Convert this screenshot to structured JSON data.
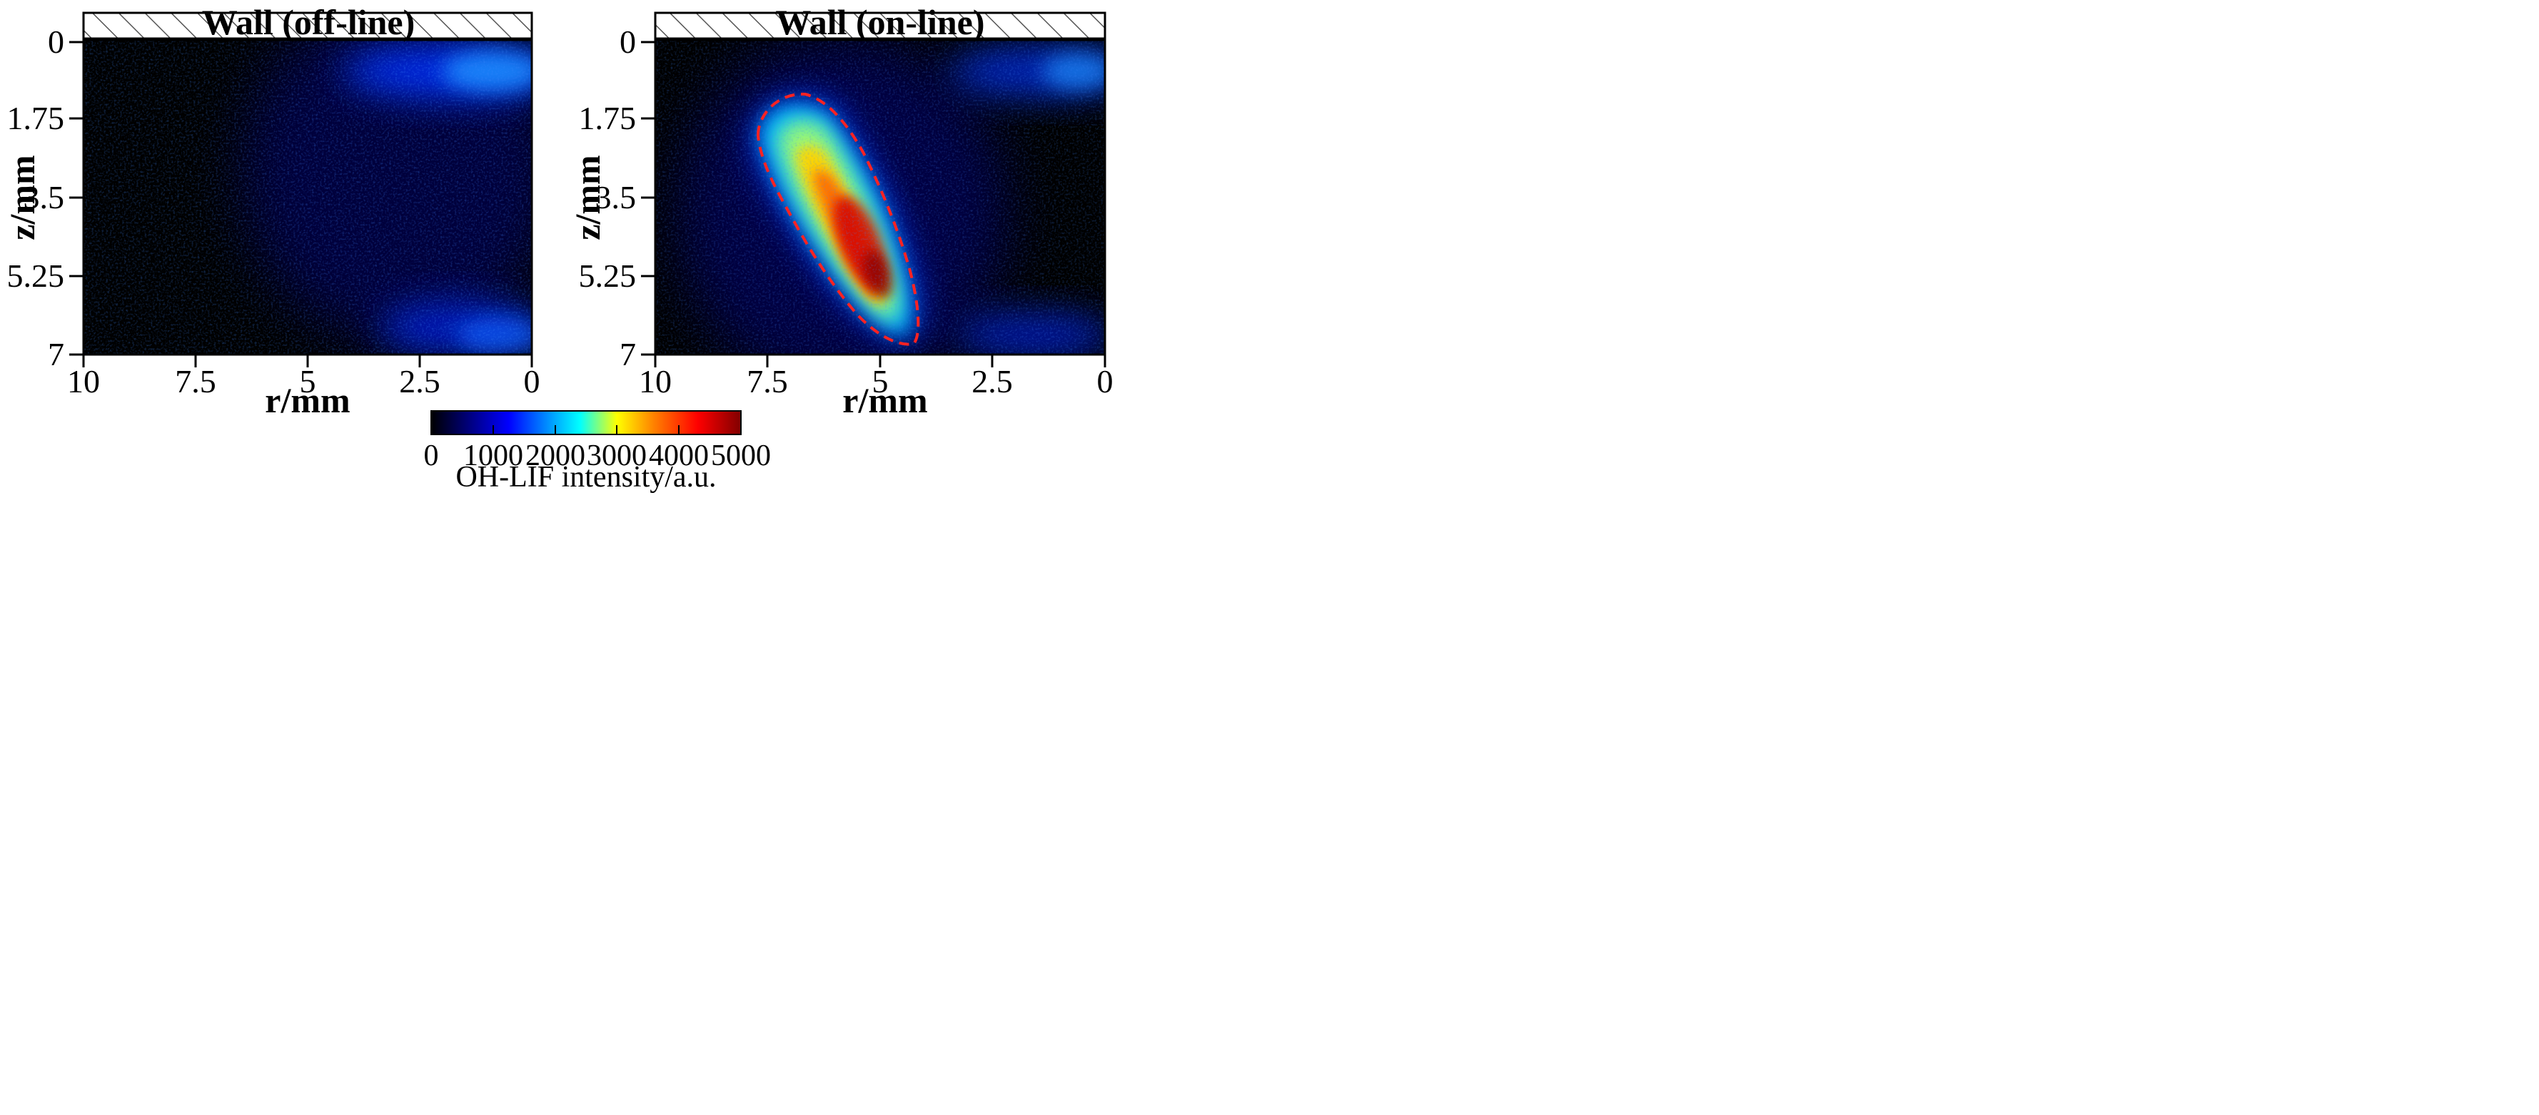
{
  "chart_data": [
    {
      "type": "heatmap",
      "wall_label": "Wall (off-line)",
      "xlabel": "r/mm",
      "ylabel": "z/mm",
      "xlim": [
        10,
        0
      ],
      "ylim": [
        0,
        7
      ],
      "x_ticks": [
        "10",
        "7.5",
        "5",
        "2.5",
        "0"
      ],
      "y_ticks": [
        "0",
        "1.75",
        "3.5",
        "5.25",
        "7"
      ],
      "features": [
        {
          "kind": "near-wall band",
          "r_range": [
            0,
            3
          ],
          "z_center": 0.6,
          "peak": 2000
        },
        {
          "kind": "diffuse flank",
          "r_center": 3.2,
          "z_center": 3.0,
          "peak": 700
        },
        {
          "kind": "lower-right spot",
          "r_range": [
            0,
            3.5
          ],
          "z_center": 6.6,
          "peak": 1600
        }
      ]
    },
    {
      "type": "heatmap",
      "wall_label": "Wall (on-line)",
      "xlabel": "r/mm",
      "ylabel": "z/mm",
      "xlim": [
        10,
        0
      ],
      "ylim": [
        0,
        7
      ],
      "x_ticks": [
        "10",
        "7.5",
        "5",
        "2.5",
        "0"
      ],
      "y_ticks": [
        "0",
        "1.75",
        "3.5",
        "5.25",
        "7"
      ],
      "features": [
        {
          "kind": "inclined flame kernel",
          "r_start": 6.6,
          "z_start": 1.6,
          "r_end": 4.6,
          "z_end": 6.6,
          "peak": 4800,
          "outlined": true,
          "outline_color": "#ff2222"
        },
        {
          "kind": "near-wall band",
          "r_range": [
            0,
            3
          ],
          "z_center": 0.7,
          "peak": 1400
        },
        {
          "kind": "lower-right spot",
          "r_range": [
            0,
            3.2
          ],
          "z_center": 6.7,
          "peak": 1300
        }
      ]
    }
  ],
  "colorbar": {
    "label": "OH-LIF intensity/a.u.",
    "min": 0,
    "max": 5000,
    "ticks": [
      "0",
      "1000",
      "2000",
      "3000",
      "4000",
      "5000"
    ],
    "colormap": "jet-dark",
    "stops": [
      "#000000",
      "#00007a",
      "#0000ff",
      "#00aaff",
      "#00ffff",
      "#ffff00",
      "#ff8000",
      "#ff0000",
      "#800000"
    ]
  },
  "colors": {
    "background": "#000000",
    "hatch": "#555555",
    "outline": "#ff2222"
  }
}
